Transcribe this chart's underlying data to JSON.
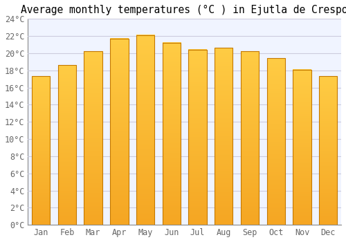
{
  "title": "Average monthly temperatures (°C ) in Ejutla de Crespo",
  "months": [
    "Jan",
    "Feb",
    "Mar",
    "Apr",
    "May",
    "Jun",
    "Jul",
    "Aug",
    "Sep",
    "Oct",
    "Nov",
    "Dec"
  ],
  "temperatures": [
    17.3,
    18.6,
    20.2,
    21.7,
    22.1,
    21.2,
    20.4,
    20.6,
    20.2,
    19.4,
    18.1,
    17.3
  ],
  "ylim": [
    0,
    24
  ],
  "yticks": [
    0,
    2,
    4,
    6,
    8,
    10,
    12,
    14,
    16,
    18,
    20,
    22,
    24
  ],
  "ytick_labels": [
    "0°C",
    "2°C",
    "4°C",
    "6°C",
    "8°C",
    "10°C",
    "12°C",
    "14°C",
    "16°C",
    "18°C",
    "20°C",
    "22°C",
    "24°C"
  ],
  "bar_color_left": "#F5A623",
  "bar_color_right": "#FFCC44",
  "bar_color_edge": "#C47800",
  "background_color": "#FFFFFF",
  "plot_bg_color": "#F0F4FF",
  "grid_color": "#CCCCDD",
  "title_fontsize": 10.5,
  "tick_fontsize": 8.5,
  "title_font_family": "monospace"
}
